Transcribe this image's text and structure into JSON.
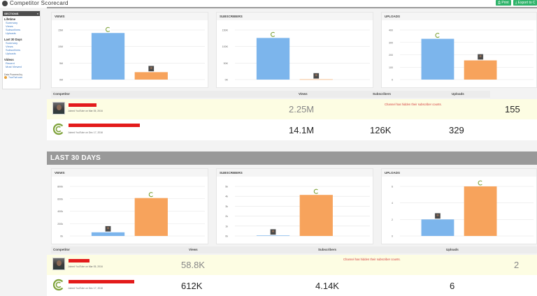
{
  "app": {
    "title": "Competitor Scorecard",
    "print_label": "Print",
    "export_label": "Export to C"
  },
  "sidebar": {
    "header": "SECTIONS",
    "collapse": "«",
    "groups": [
      {
        "title": "Lifetime",
        "items": [
          "Summary",
          "Views",
          "Subscribers",
          "Uploads"
        ]
      },
      {
        "title": "Last 30 Days",
        "items": [
          "Summary",
          "Views",
          "Subscribers",
          "Uploads"
        ]
      },
      {
        "title": "Videos",
        "items": [
          "Recent",
          "Most Viewed"
        ]
      }
    ],
    "footer": "Data Powered by",
    "footer_link": "TrueTwit.com"
  },
  "lifetime": {
    "charts": [
      {
        "title": "VIEWS",
        "ticks": [
          "15M",
          "10M",
          "5M",
          "0M"
        ],
        "max": 15,
        "values": [
          14.1,
          2.25
        ]
      },
      {
        "title": "SUBSCRIBERS",
        "ticks": [
          "150K",
          "100K",
          "50K",
          "0K"
        ],
        "max": 150,
        "values": [
          126,
          0.8
        ]
      },
      {
        "title": "UPLOADS",
        "ticks": [
          "400",
          "300",
          "200",
          "100",
          "0"
        ],
        "max": 400,
        "values": [
          329,
          155
        ]
      }
    ],
    "table": {
      "headers": {
        "competitor": "Competitor",
        "views": "Views",
        "subscribers": "Subscribers",
        "uploads": "Uploads"
      },
      "rows": [
        {
          "joined": "Joined YouTube on Mar 05, 2016",
          "views": "2.25M",
          "subscribers_note": "Channel has hidden their subscriber counts.",
          "uploads": "155"
        },
        {
          "joined": "Joined YouTube on Dec 17, 2016",
          "views": "14.1M",
          "subscribers": "126K",
          "uploads": "329"
        }
      ]
    }
  },
  "last30": {
    "section_title": "LAST 30 DAYS",
    "charts": [
      {
        "title": "VIEWS",
        "ticks": [
          "800k",
          "600k",
          "400k",
          "200k",
          "0k"
        ],
        "max": 800,
        "values": [
          58.8,
          612
        ]
      },
      {
        "title": "SUBSCRIBERS",
        "ticks": [
          "5k",
          "4k",
          "3k",
          "2k",
          "1k",
          "0k"
        ],
        "max": 5,
        "values": [
          0.05,
          4.14
        ]
      },
      {
        "title": "UPLOADS",
        "ticks": [
          "6",
          "4",
          "2",
          "0"
        ],
        "max": 6,
        "values": [
          2,
          6
        ]
      }
    ],
    "table": {
      "headers": {
        "competitor": "Competitor",
        "views": "Views",
        "subscribers": "Subscribers",
        "uploads": "Uploads"
      },
      "rows": [
        {
          "joined": "Joined YouTube on Mar 05, 2016",
          "views": "58.8K",
          "subscribers_note": "Channel has hidden their subscriber counts.",
          "uploads": "2"
        },
        {
          "joined": "Joined YouTube on Dec 17, 2016",
          "views": "612K",
          "subscribers": "4.14K",
          "uploads": "6"
        }
      ]
    }
  },
  "colors": {
    "blue_bar": "#7cb5ec",
    "orange_bar": "#f7a35c",
    "green_logo": "#7fa33b",
    "redaction": "#e31b1b"
  },
  "icons": {
    "app": "app-logo-icon",
    "print": "printer-icon",
    "export": "download-icon",
    "competitor_logo": "c-logo-icon"
  }
}
